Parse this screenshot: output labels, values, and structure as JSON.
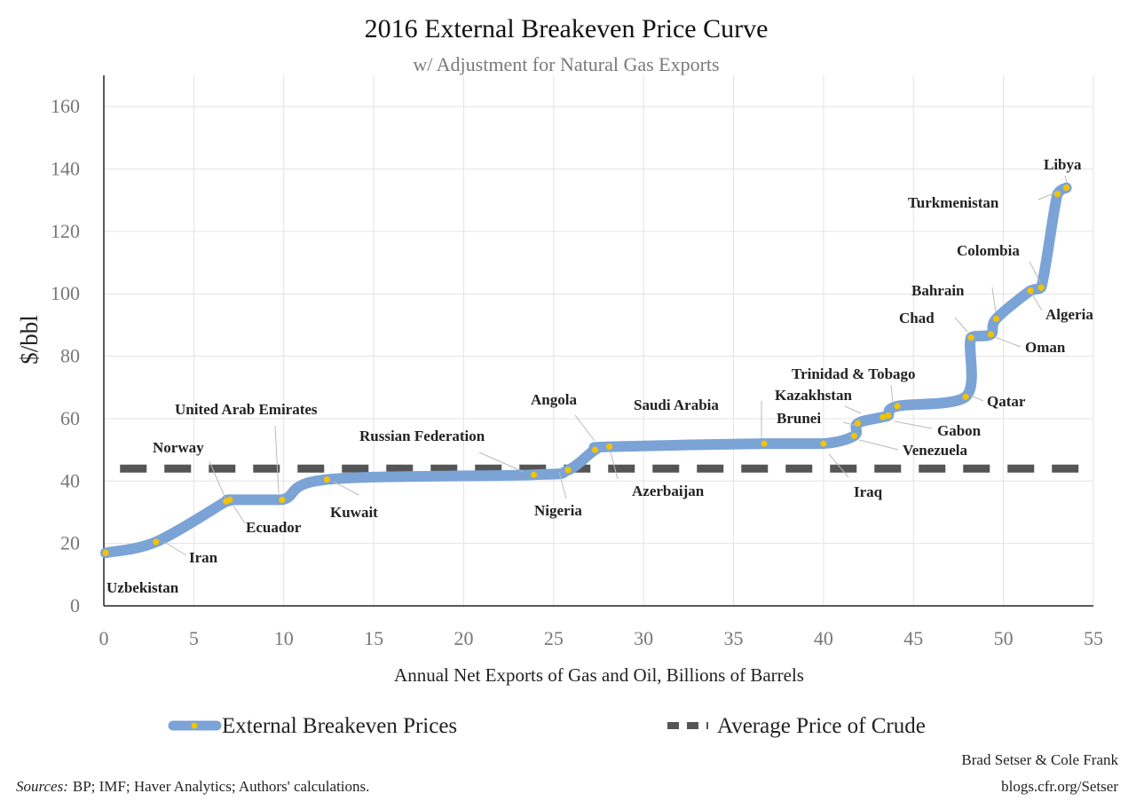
{
  "chart_data": {
    "type": "line",
    "title": "2016 External Breakeven Price Curve",
    "subtitle": "w/ Adjustment for Natural Gas Exports",
    "xlabel": "Annual Net Exports of Gas and Oil, Billions of Barrels",
    "ylabel": "$/bbl",
    "xlim": [
      0,
      55
    ],
    "ylim": [
      0,
      170
    ],
    "xticks": [
      0,
      5,
      10,
      15,
      20,
      25,
      30,
      35,
      40,
      45,
      50,
      55
    ],
    "yticks": [
      0,
      20,
      40,
      60,
      80,
      100,
      120,
      140,
      160
    ],
    "grid": true,
    "legend_position": "bottom",
    "series": [
      {
        "name": "External Breakeven Prices",
        "color": "#7ba3d6",
        "marker_color": "#f2c300",
        "points": [
          {
            "label": "Uzbekistan",
            "x": 0.1,
            "y": 17
          },
          {
            "label": "Iran",
            "x": 2.9,
            "y": 20.5
          },
          {
            "label": "Norway",
            "x": 6.8,
            "y": 33.5
          },
          {
            "label": "Ecuador",
            "x": 7.0,
            "y": 34
          },
          {
            "label": "United Arab Emirates",
            "x": 9.9,
            "y": 34
          },
          {
            "label": "Kuwait",
            "x": 12.4,
            "y": 40.5
          },
          {
            "label": "Russian Federation",
            "x": 23.9,
            "y": 42
          },
          {
            "label": "Nigeria",
            "x": 25.8,
            "y": 43.5
          },
          {
            "label": "Angola",
            "x": 27.3,
            "y": 50
          },
          {
            "label": "Azerbaijan",
            "x": 28.1,
            "y": 51
          },
          {
            "label": "Saudi Arabia",
            "x": 36.7,
            "y": 52
          },
          {
            "label": "Iraq",
            "x": 40.0,
            "y": 52
          },
          {
            "label": "Venezuela",
            "x": 41.7,
            "y": 54.5
          },
          {
            "label": "Brunei",
            "x": 41.9,
            "y": 58.5
          },
          {
            "label": "Kazakhstan",
            "x": 43.3,
            "y": 60.5
          },
          {
            "label": "Gabon",
            "x": 43.6,
            "y": 61
          },
          {
            "label": "Trinidad & Tobago",
            "x": 44.1,
            "y": 64
          },
          {
            "label": "Qatar",
            "x": 47.9,
            "y": 67
          },
          {
            "label": "Chad",
            "x": 48.2,
            "y": 86
          },
          {
            "label": "Oman",
            "x": 49.3,
            "y": 87
          },
          {
            "label": "Bahrain",
            "x": 49.6,
            "y": 92
          },
          {
            "label": "Algeria",
            "x": 51.5,
            "y": 101
          },
          {
            "label": "Colombia",
            "x": 52.1,
            "y": 102
          },
          {
            "label": "Turkmenistan",
            "x": 53.0,
            "y": 132
          },
          {
            "label": "Libya",
            "x": 53.5,
            "y": 134
          }
        ]
      },
      {
        "name": "Average Price of Crude",
        "color": "#555555",
        "style": "dashed",
        "x": [
          0.9,
          55
        ],
        "values": [
          44,
          44
        ]
      }
    ],
    "annotations": {
      "source": "BP; IMF; Haver Analytics; Authors' calculations.",
      "source_prefix": "Sources:",
      "credit_line1": "Brad Setser & Cole Frank",
      "credit_line2": "blogs.cfr.org/Setser"
    }
  }
}
